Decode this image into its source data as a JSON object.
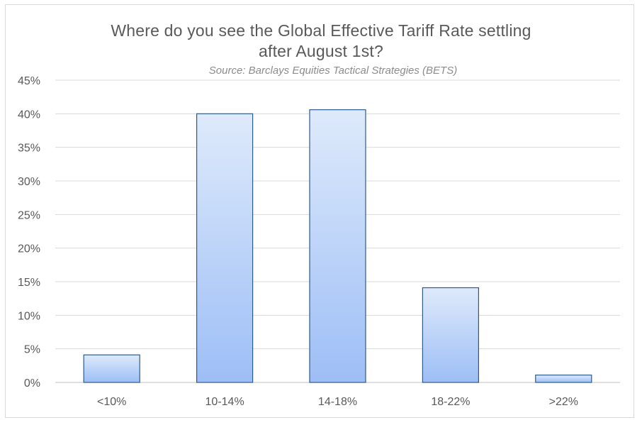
{
  "chart_data": {
    "type": "bar",
    "title_line1": "Where do you see the Global Effective Tariff Rate settling",
    "title_line2": "after August 1st?",
    "subtitle": "Source: Barclays Equities Tactical Strategies (BETS)",
    "categories": [
      "<10%",
      "10-14%",
      "14-18%",
      "18-22%",
      ">22%"
    ],
    "values": [
      4.1,
      40.0,
      40.6,
      14.1,
      1.1
    ],
    "ylim": [
      0,
      45
    ],
    "yticks": [
      0,
      5,
      10,
      15,
      20,
      25,
      30,
      35,
      40,
      45
    ],
    "ytick_labels": [
      "0%",
      "5%",
      "10%",
      "15%",
      "20%",
      "25%",
      "30%",
      "35%",
      "40%",
      "45%"
    ],
    "xlabel": "",
    "ylabel": "",
    "grid": true,
    "bar_color_top": "#deeafb",
    "bar_color_bottom": "#9dbef6",
    "bar_border_color": "#2e5a8a"
  }
}
